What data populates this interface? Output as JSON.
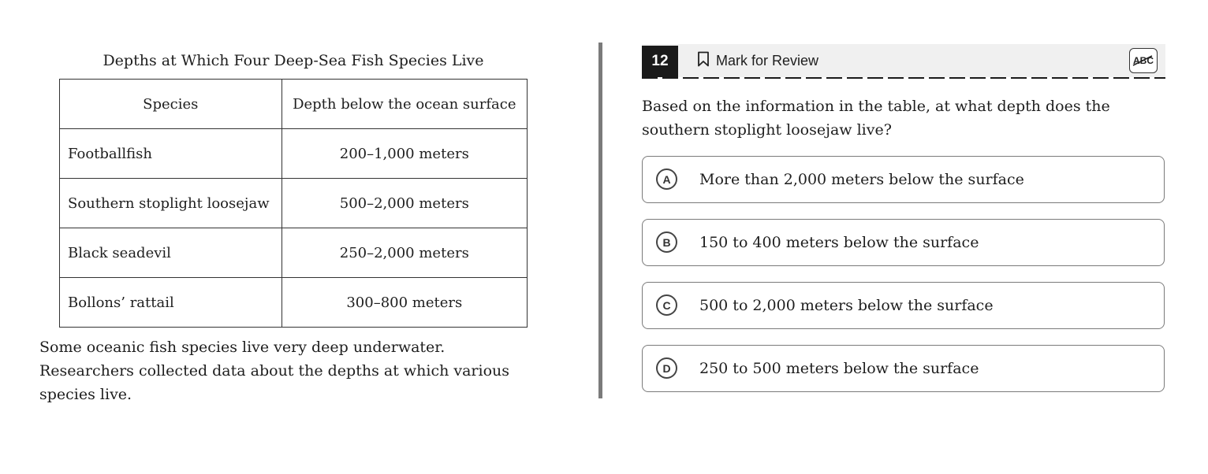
{
  "passage_panel": {
    "table_title": "Depths at Which Four Deep-Sea Fish Species Live",
    "table": {
      "headers": [
        "Species",
        "Depth below the ocean surface"
      ],
      "rows": [
        {
          "species": "Footballfish",
          "depth": "200–1,000 meters"
        },
        {
          "species": "Southern stoplight loosejaw",
          "depth": "500–2,000 meters"
        },
        {
          "species": "Black seadevil",
          "depth": "250–2,000 meters"
        },
        {
          "species": "Bollons’ rattail",
          "depth": "300–800 meters"
        }
      ]
    },
    "passage_text": "Some oceanic fish species live very deep underwater. Researchers collected data about the depths at which various species live."
  },
  "question_panel": {
    "question_number": "12",
    "mark_for_review_label": "Mark for Review",
    "abc_button_label": "ABC",
    "question_text": "Based on the information in the table, at what depth does the southern stoplight loosejaw live?",
    "choices": [
      {
        "letter": "A",
        "text": "More than 2,000 meters below the surface"
      },
      {
        "letter": "B",
        "text": "150 to 400 meters below the surface"
      },
      {
        "letter": "C",
        "text": "500 to 2,000 meters below the surface"
      },
      {
        "letter": "D",
        "text": "250 to 500 meters below the surface"
      }
    ]
  }
}
